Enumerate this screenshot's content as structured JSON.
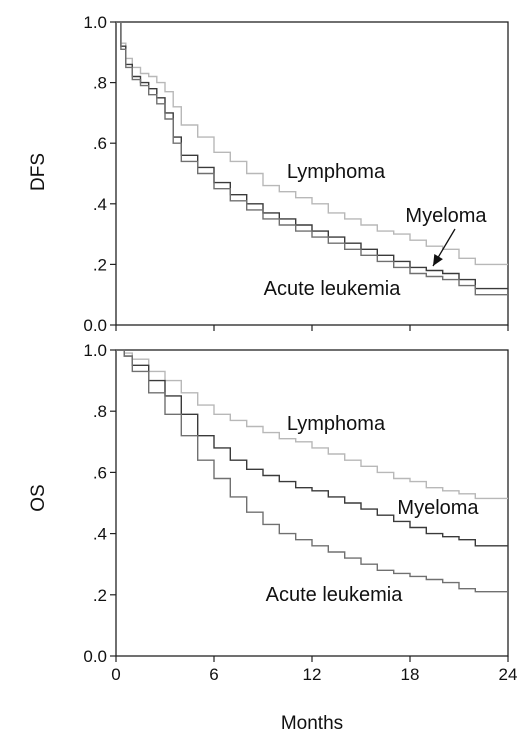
{
  "chart_data": [
    {
      "type": "line",
      "ylabel": "DFS",
      "xlabel": "",
      "xlim": [
        0,
        24
      ],
      "ylim": [
        0,
        1
      ],
      "yticks": [
        "0.0",
        ".2",
        ".4",
        ".6",
        ".8",
        "1.0"
      ],
      "grid": false,
      "series": [
        {
          "name": "Lymphoma",
          "color": "#b8b8b8",
          "x": [
            0,
            0.3,
            0.6,
            1.0,
            1.5,
            2.0,
            2.5,
            3.0,
            3.5,
            4.0,
            5.0,
            6.0,
            7.0,
            8.0,
            9.0,
            10.0,
            11.0,
            12.0,
            13.0,
            14.0,
            15.0,
            16.0,
            17.0,
            18.0,
            19.0,
            20.0,
            21.0,
            22.0,
            24.0
          ],
          "y": [
            1.0,
            0.93,
            0.88,
            0.85,
            0.83,
            0.82,
            0.8,
            0.77,
            0.72,
            0.66,
            0.62,
            0.57,
            0.54,
            0.5,
            0.46,
            0.44,
            0.42,
            0.4,
            0.37,
            0.35,
            0.33,
            0.31,
            0.3,
            0.28,
            0.26,
            0.25,
            0.22,
            0.2,
            0.2
          ]
        },
        {
          "name": "Myeloma",
          "color": "#3a3a3a",
          "x": [
            0,
            0.3,
            0.6,
            1.0,
            1.5,
            2.0,
            2.5,
            3.0,
            3.5,
            4.0,
            5.0,
            6.0,
            7.0,
            8.0,
            9.0,
            10.0,
            11.0,
            12.0,
            13.0,
            14.0,
            15.0,
            16.0,
            17.0,
            18.0,
            19.0,
            20.0,
            21.0,
            22.0,
            24.0
          ],
          "y": [
            1.0,
            0.92,
            0.86,
            0.82,
            0.8,
            0.78,
            0.75,
            0.7,
            0.62,
            0.56,
            0.52,
            0.47,
            0.43,
            0.4,
            0.37,
            0.35,
            0.33,
            0.31,
            0.29,
            0.27,
            0.25,
            0.23,
            0.21,
            0.19,
            0.18,
            0.17,
            0.15,
            0.12,
            0.12
          ]
        },
        {
          "name": "Acute leukemia",
          "color": "#707070",
          "x": [
            0,
            0.3,
            0.6,
            1.0,
            1.5,
            2.0,
            2.5,
            3.0,
            3.5,
            4.0,
            5.0,
            6.0,
            7.0,
            8.0,
            9.0,
            10.0,
            11.0,
            12.0,
            13.0,
            14.0,
            15.0,
            16.0,
            17.0,
            18.0,
            19.0,
            20.0,
            21.0,
            22.0,
            24.0
          ],
          "y": [
            1.0,
            0.91,
            0.85,
            0.81,
            0.79,
            0.76,
            0.73,
            0.68,
            0.6,
            0.54,
            0.5,
            0.45,
            0.41,
            0.38,
            0.35,
            0.33,
            0.31,
            0.29,
            0.27,
            0.25,
            0.23,
            0.21,
            0.19,
            0.17,
            0.16,
            0.15,
            0.13,
            0.1,
            0.1
          ]
        }
      ],
      "annotations": [
        "Lymphoma",
        "Myeloma",
        "Acute leukemia"
      ]
    },
    {
      "type": "line",
      "ylabel": "OS",
      "xlabel": "Months",
      "xlim": [
        0,
        24
      ],
      "ylim": [
        0,
        1
      ],
      "xticks": [
        "0",
        "6",
        "12",
        "18",
        "24"
      ],
      "yticks": [
        "0.0",
        ".2",
        ".4",
        ".6",
        ".8",
        "1.0"
      ],
      "grid": false,
      "series": [
        {
          "name": "Lymphoma",
          "color": "#b8b8b8",
          "x": [
            0,
            0.5,
            1.0,
            2.0,
            3.0,
            4.0,
            5.0,
            6.0,
            7.0,
            8.0,
            9.0,
            10.0,
            11.0,
            12.0,
            13.0,
            14.0,
            15.0,
            16.0,
            17.0,
            18.0,
            19.0,
            20.0,
            21.0,
            22.0,
            24.0
          ],
          "y": [
            1.0,
            0.99,
            0.97,
            0.93,
            0.9,
            0.86,
            0.82,
            0.79,
            0.77,
            0.75,
            0.73,
            0.71,
            0.7,
            0.68,
            0.66,
            0.64,
            0.62,
            0.6,
            0.58,
            0.57,
            0.55,
            0.54,
            0.53,
            0.515,
            0.515
          ]
        },
        {
          "name": "Myeloma",
          "color": "#3a3a3a",
          "x": [
            0,
            0.5,
            1.0,
            2.0,
            3.0,
            4.0,
            5.0,
            6.0,
            7.0,
            8.0,
            9.0,
            10.0,
            11.0,
            12.0,
            13.0,
            14.0,
            15.0,
            16.0,
            17.0,
            18.0,
            19.0,
            20.0,
            21.0,
            22.0,
            24.0
          ],
          "y": [
            1.0,
            0.98,
            0.95,
            0.9,
            0.85,
            0.79,
            0.72,
            0.68,
            0.64,
            0.61,
            0.59,
            0.57,
            0.55,
            0.54,
            0.52,
            0.5,
            0.48,
            0.46,
            0.44,
            0.42,
            0.4,
            0.39,
            0.38,
            0.36,
            0.36
          ]
        },
        {
          "name": "Acute leukemia",
          "color": "#707070",
          "x": [
            0,
            0.5,
            1.0,
            2.0,
            3.0,
            4.0,
            5.0,
            6.0,
            7.0,
            8.0,
            9.0,
            10.0,
            11.0,
            12.0,
            13.0,
            14.0,
            15.0,
            16.0,
            17.0,
            18.0,
            19.0,
            20.0,
            21.0,
            22.0,
            24.0
          ],
          "y": [
            1.0,
            0.98,
            0.93,
            0.86,
            0.79,
            0.72,
            0.64,
            0.58,
            0.52,
            0.47,
            0.43,
            0.4,
            0.38,
            0.36,
            0.34,
            0.32,
            0.3,
            0.28,
            0.27,
            0.26,
            0.25,
            0.24,
            0.22,
            0.21,
            0.21
          ]
        }
      ],
      "annotations": [
        "Lymphoma",
        "Myeloma",
        "Acute leukemia"
      ]
    }
  ]
}
